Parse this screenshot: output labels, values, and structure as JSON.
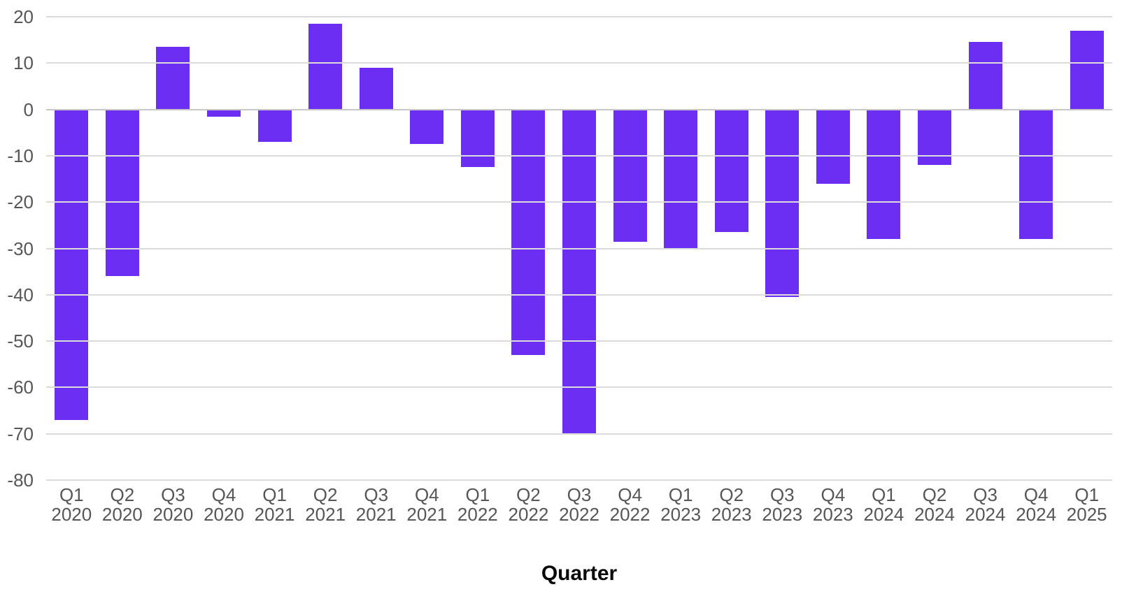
{
  "chart_data": {
    "type": "bar",
    "title": "",
    "xlabel": "Quarter",
    "ylabel": "",
    "categories": [
      "Q1 2020",
      "Q2 2020",
      "Q3 2020",
      "Q4 2020",
      "Q1 2021",
      "Q2 2021",
      "Q3 2021",
      "Q4 2021",
      "Q1 2022",
      "Q2 2022",
      "Q3 2022",
      "Q4 2022",
      "Q1 2023",
      "Q2 2023",
      "Q3 2023",
      "Q4 2023",
      "Q1 2024",
      "Q2 2024",
      "Q3 2024",
      "Q4 2024",
      "Q1 2025"
    ],
    "values": [
      -67,
      -36,
      13.5,
      -1.5,
      -7,
      18.5,
      9,
      -7.5,
      -12.5,
      -53,
      -70,
      -28.5,
      -30,
      -26.5,
      -40.5,
      -16,
      -28,
      -12,
      14.5,
      -28,
      17
    ],
    "ylim": [
      -80,
      20
    ],
    "yticks": [
      20,
      10,
      0,
      -10,
      -20,
      -30,
      -40,
      -50,
      -60,
      -70,
      -80
    ],
    "grid": "on",
    "legend": "none",
    "bar_color": "#6B2EF2",
    "gridline_color": "#DBDBDB",
    "zero_line_color": "#C7C7C7",
    "tick_label_color": "#565656"
  }
}
